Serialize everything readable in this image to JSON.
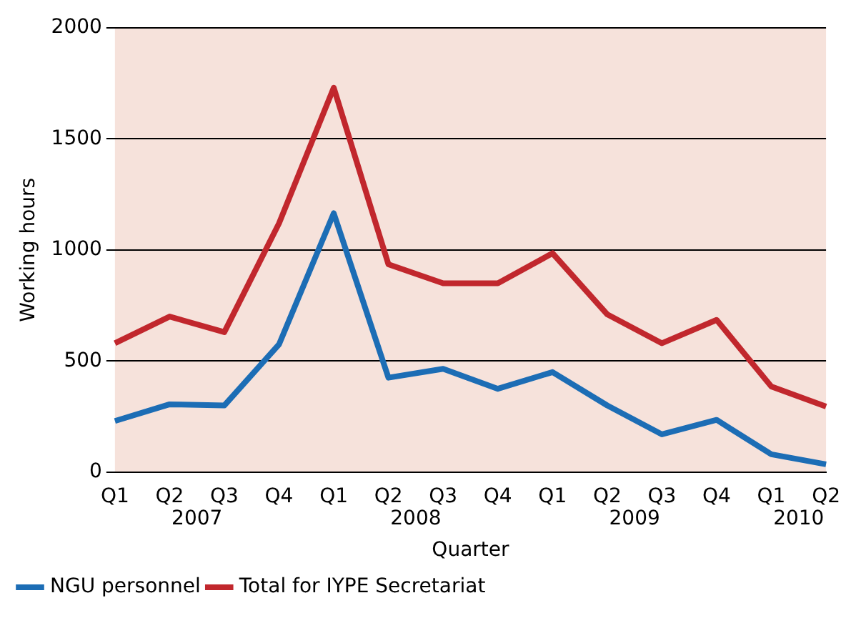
{
  "chart_data": {
    "type": "line",
    "xlabel": "Quarter",
    "ylabel": "Working hours",
    "categories": [
      "Q1",
      "Q2",
      "Q3",
      "Q4",
      "Q1",
      "Q2",
      "Q3",
      "Q4",
      "Q1",
      "Q2",
      "Q3",
      "Q4",
      "Q1",
      "Q2"
    ],
    "annotations": [
      "2007",
      "2008",
      "2009",
      "2010"
    ],
    "series": [
      {
        "name": "NGU personnel",
        "color": "#1c6db5",
        "values": [
          230,
          305,
          300,
          575,
          1165,
          425,
          465,
          375,
          450,
          300,
          170,
          235,
          80,
          35
        ]
      },
      {
        "name": "Total for IYPE Secretariat",
        "color": "#c1272d",
        "values": [
          580,
          700,
          630,
          1120,
          1730,
          935,
          850,
          850,
          985,
          710,
          580,
          685,
          385,
          295
        ]
      }
    ],
    "ylim": [
      0,
      2000
    ],
    "yticks": [
      0,
      500,
      1000,
      1500,
      2000
    ],
    "grid": "y",
    "legend": "bottom",
    "marker": "none",
    "line_style": "solid"
  }
}
